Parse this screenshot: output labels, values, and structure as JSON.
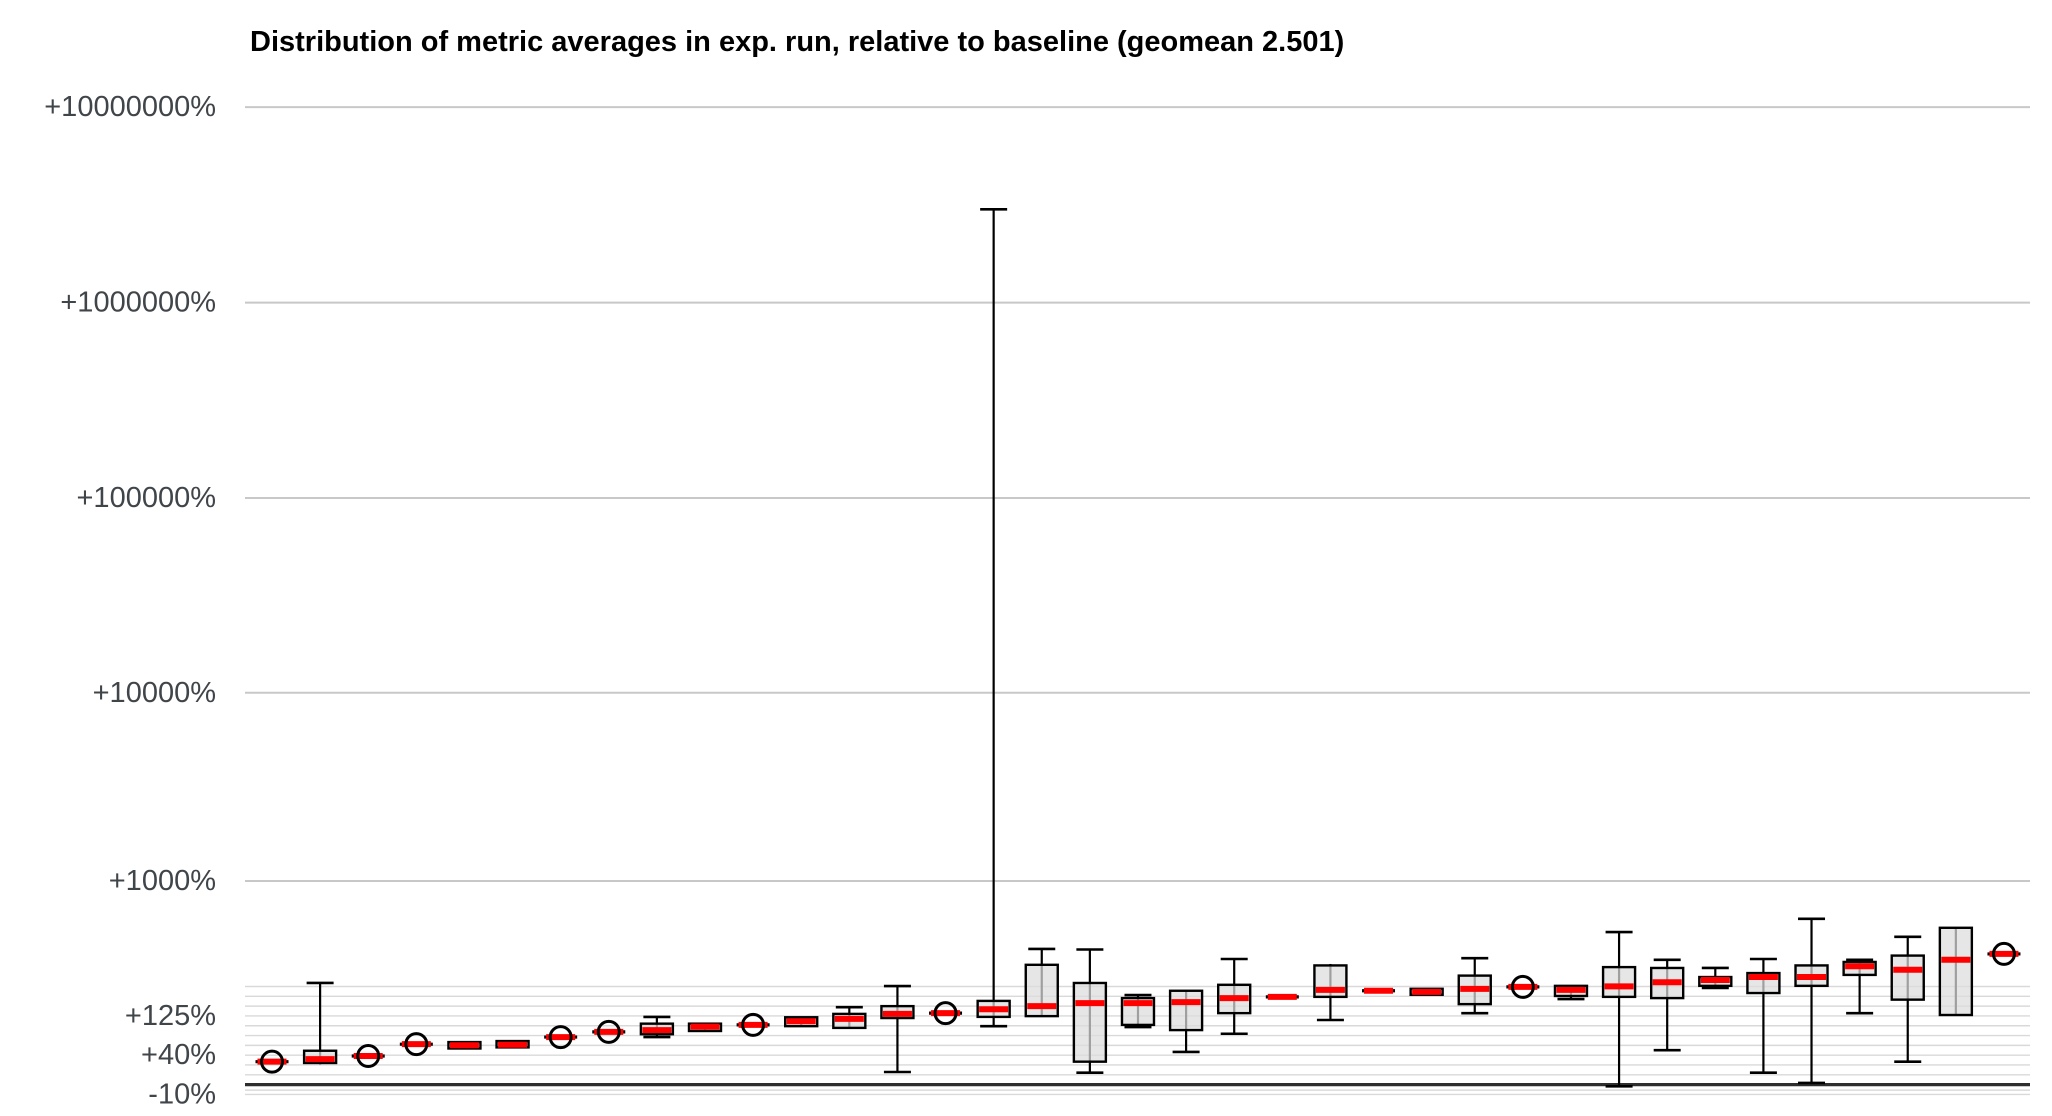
{
  "title": "Distribution of metric averages in exp. run, relative to baseline (geomean 2.501)",
  "colors": {
    "background": "#ffffff",
    "title_text": "#000000",
    "tick_label_text": "#40454a",
    "major_gridline": "#c8c8c8",
    "minor_gridline": "#d9d9d9",
    "zero_line": "#2e2e2e",
    "box_edge": "#000000",
    "box_fill": "#dcdcdc",
    "median_line": "#ff0000",
    "circle_marker": "#000000"
  },
  "chart_data": {
    "type": "boxplot",
    "title": "Distribution of metric averages in exp. run, relative to baseline (geomean 2.501)",
    "geomean": 2.501,
    "orientation": "vertical",
    "x_axis": {
      "label": "",
      "tick_labels": []
    },
    "y_axis": {
      "label": "",
      "scale": "log of (1 + percent/100)",
      "unit": "percent change vs baseline",
      "major_ticks": [
        {
          "label": "+10000000%",
          "pct": 10000000
        },
        {
          "label": "+1000000%",
          "pct": 1000000
        },
        {
          "label": "+100000%",
          "pct": 100000
        },
        {
          "label": "+10000%",
          "pct": 10000
        },
        {
          "label": "+1000%",
          "pct": 1000
        }
      ],
      "labeled_minor_ticks": [
        {
          "label": "+125%",
          "pct": 124.5
        },
        {
          "label": "+40%",
          "pct": 41.4
        },
        {
          "label": "-10%",
          "pct": -10.9
        }
      ],
      "minor_ticks_pct": [
        -10.9,
        -6.3,
        12.2,
        26,
        41.4,
        58.7,
        78.2,
        100,
        124.5,
        152,
        183,
        217.5
      ],
      "zero_line_pct": 0,
      "grid": true
    },
    "legend": null,
    "series": [
      {
        "median_pct": 31,
        "circle": true
      },
      {
        "median_pct": 35,
        "q1_pct": 29,
        "q3_pct": 49,
        "lo_pct": 27,
        "hi_pct": 231
      },
      {
        "median_pct": 40,
        "circle": true
      },
      {
        "median_pct": 61,
        "circle": true
      },
      {
        "median_pct": 59,
        "q1_pct": 53,
        "q3_pct": 65
      },
      {
        "median_pct": 60,
        "q1_pct": 55,
        "q3_pct": 67
      },
      {
        "median_pct": 75,
        "circle": true
      },
      {
        "median_pct": 86,
        "circle": true
      },
      {
        "median_pct": 90,
        "q1_pct": 81,
        "q3_pct": 105,
        "lo_pct": 75,
        "hi_pct": 122
      },
      {
        "median_pct": 98,
        "q1_pct": 88,
        "q3_pct": 105
      },
      {
        "median_pct": 102,
        "circle": true
      },
      {
        "median_pct": 111,
        "q1_pct": 99,
        "q3_pct": 121
      },
      {
        "median_pct": 117,
        "q1_pct": 95,
        "q3_pct": 130,
        "lo_pct": 93,
        "hi_pct": 149
      },
      {
        "median_pct": 130,
        "q1_pct": 119,
        "q3_pct": 152,
        "lo_pct": 16,
        "hi_pct": 219
      },
      {
        "median_pct": 132,
        "circle": true
      },
      {
        "median_pct": 143,
        "q1_pct": 122,
        "q3_pct": 168,
        "lo_pct": 99,
        "hi_pct": 3000000
      },
      {
        "median_pct": 152,
        "q1_pct": 124,
        "q3_pct": 310,
        "lo_pct": 122,
        "hi_pct": 394
      },
      {
        "median_pct": 161,
        "q1_pct": 31,
        "q3_pct": 231,
        "lo_pct": 15,
        "hi_pct": 391
      },
      {
        "median_pct": 161,
        "q1_pct": 102,
        "q3_pct": 177,
        "lo_pct": 97,
        "hi_pct": 187
      },
      {
        "median_pct": 164,
        "q1_pct": 90,
        "q3_pct": 202,
        "lo_pct": 47,
        "hi_pct": 205
      },
      {
        "median_pct": 177,
        "q1_pct": 132,
        "q3_pct": 224,
        "lo_pct": 82,
        "hi_pct": 339
      },
      {
        "median_pct": 181,
        "circle": false
      },
      {
        "median_pct": 205,
        "q1_pct": 181,
        "q3_pct": 307,
        "lo_pct": 114,
        "hi_pct": 314
      },
      {
        "median_pct": 202,
        "circle": false
      },
      {
        "median_pct": 198,
        "q1_pct": 188,
        "q3_pct": 209
      },
      {
        "median_pct": 209,
        "q1_pct": 158,
        "q3_pct": 261,
        "lo_pct": 132,
        "hi_pct": 343
      },
      {
        "median_pct": 216,
        "circle": true
      },
      {
        "median_pct": 205,
        "q1_pct": 184,
        "q3_pct": 220,
        "lo_pct": 174,
        "hi_pct": 220
      },
      {
        "median_pct": 218,
        "q1_pct": 181,
        "q3_pct": 299,
        "lo_pct": -2,
        "hi_pct": 503
      },
      {
        "median_pct": 234,
        "q1_pct": 177,
        "q3_pct": 295,
        "lo_pct": 50,
        "hi_pct": 335
      },
      {
        "median_pct": 243,
        "q1_pct": 220,
        "q3_pct": 255,
        "lo_pct": 212,
        "hi_pct": 295
      },
      {
        "median_pct": 255,
        "q1_pct": 194,
        "q3_pct": 272,
        "lo_pct": 15,
        "hi_pct": 339
      },
      {
        "median_pct": 255,
        "q1_pct": 220,
        "q3_pct": 307,
        "lo_pct": 2,
        "hi_pct": 605
      },
      {
        "median_pct": 303,
        "q1_pct": 264,
        "q3_pct": 324,
        "lo_pct": 132,
        "hi_pct": 335
      },
      {
        "median_pct": 287,
        "q1_pct": 172,
        "q3_pct": 357,
        "lo_pct": 31,
        "hi_pct": 470
      },
      {
        "median_pct": 335,
        "q1_pct": 127,
        "q3_pct": 534
      },
      {
        "median_pct": 366,
        "circle": true
      }
    ]
  }
}
